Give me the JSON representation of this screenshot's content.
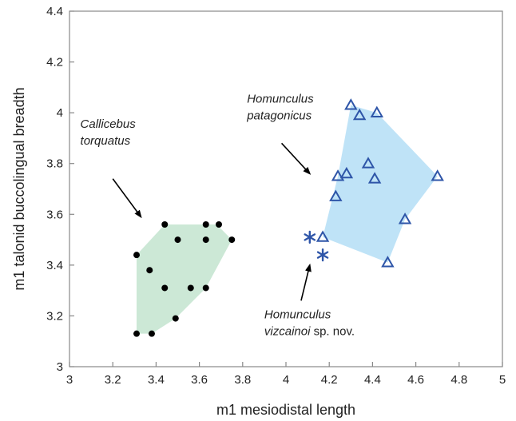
{
  "chart_data": {
    "type": "scatter",
    "title": "",
    "xlabel": "m1 mesiodistal length",
    "ylabel": "m1 talonid buccolingual breadth",
    "xlim": [
      3,
      5
    ],
    "ylim": [
      3,
      4.4
    ],
    "x_ticks": [
      3,
      3.2,
      3.4,
      3.6,
      3.8,
      4,
      4.2,
      4.4,
      4.6,
      4.8,
      5
    ],
    "x_tick_labels": [
      "3",
      "3.2",
      "3.4",
      "3.6",
      "3.8",
      "4",
      "4.2",
      "4.4",
      "4.6",
      "4.8",
      "5"
    ],
    "y_ticks": [
      3,
      3.2,
      3.4,
      3.6,
      3.8,
      4,
      4.2,
      4.4
    ],
    "y_tick_labels": [
      "3",
      "3.2",
      "3.4",
      "3.6",
      "3.8",
      "4",
      "4.2",
      "4.4"
    ],
    "grid": false,
    "legend": "none",
    "series": [
      {
        "marker": "circle",
        "color": "#000000",
        "hull_color": "#cce8d6",
        "hull": [
          [
            3.31,
            3.13
          ],
          [
            3.38,
            3.13
          ],
          [
            3.49,
            3.19
          ],
          [
            3.63,
            3.31
          ],
          [
            3.75,
            3.5
          ],
          [
            3.68,
            3.56
          ],
          [
            3.44,
            3.56
          ],
          [
            3.31,
            3.44
          ]
        ],
        "points": [
          [
            3.31,
            3.44
          ],
          [
            3.31,
            3.13
          ],
          [
            3.38,
            3.13
          ],
          [
            3.37,
            3.38
          ],
          [
            3.44,
            3.56
          ],
          [
            3.44,
            3.31
          ],
          [
            3.5,
            3.5
          ],
          [
            3.49,
            3.19
          ],
          [
            3.56,
            3.31
          ],
          [
            3.63,
            3.56
          ],
          [
            3.63,
            3.5
          ],
          [
            3.63,
            3.31
          ],
          [
            3.69,
            3.56
          ],
          [
            3.75,
            3.5
          ]
        ]
      },
      {
        "marker": "triangle",
        "color": "#2e55a8",
        "hull_color": "#bfe3f7",
        "hull": [
          [
            4.17,
            3.51
          ],
          [
            4.24,
            3.75
          ],
          [
            4.3,
            4.03
          ],
          [
            4.42,
            4.0
          ],
          [
            4.7,
            3.75
          ],
          [
            4.55,
            3.58
          ],
          [
            4.47,
            3.41
          ]
        ],
        "points": [
          [
            4.17,
            3.51
          ],
          [
            4.23,
            3.67
          ],
          [
            4.24,
            3.75
          ],
          [
            4.28,
            3.76
          ],
          [
            4.3,
            4.03
          ],
          [
            4.34,
            3.99
          ],
          [
            4.38,
            3.8
          ],
          [
            4.41,
            3.74
          ],
          [
            4.42,
            4.0
          ],
          [
            4.55,
            3.58
          ],
          [
            4.47,
            3.41
          ],
          [
            4.7,
            3.75
          ]
        ]
      },
      {
        "marker": "asterisk",
        "color": "#2e55a8",
        "points": [
          [
            4.11,
            3.51
          ],
          [
            4.17,
            3.44
          ]
        ]
      }
    ],
    "annotations": [
      {
        "lines": [
          [
            "Callicebus"
          ],
          [
            "torquatus"
          ]
        ],
        "x": 3.05,
        "y": 3.94,
        "arrow_from": [
          3.2,
          3.74
        ],
        "arrow_to": [
          3.33,
          3.59
        ]
      },
      {
        "lines": [
          [
            "Homunculus"
          ],
          [
            "patagonicus"
          ]
        ],
        "x": 3.82,
        "y": 4.04,
        "arrow_from": [
          3.98,
          3.88
        ],
        "arrow_to": [
          4.11,
          3.76
        ]
      },
      {
        "lines": [
          [
            "Homunculus"
          ],
          [
            "vizcainoi",
            " sp. nov."
          ]
        ],
        "x": 3.9,
        "y": 3.19,
        "arrow_from": [
          4.07,
          3.26
        ],
        "arrow_to": [
          4.11,
          3.4
        ]
      }
    ]
  }
}
